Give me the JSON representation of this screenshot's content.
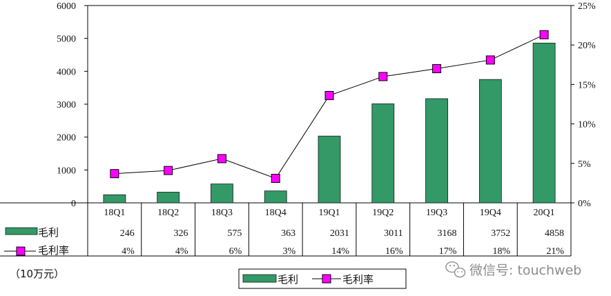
{
  "chart_data": {
    "type": "bar",
    "categories": [
      "18Q1",
      "18Q2",
      "18Q3",
      "18Q4",
      "19Q1",
      "19Q2",
      "19Q3",
      "19Q4",
      "20Q1"
    ],
    "series": [
      {
        "name": "毛利",
        "type": "bar",
        "axis": "left",
        "color": "#339966",
        "values": [
          246,
          326,
          575,
          363,
          2031,
          3011,
          3168,
          3752,
          4858
        ]
      },
      {
        "name": "毛利率",
        "type": "line",
        "axis": "right",
        "color": "#ff00ff",
        "values": [
          3.7,
          4.1,
          5.6,
          3.1,
          13.6,
          16.0,
          17.0,
          18.1,
          21.3
        ],
        "labels": [
          "4%",
          "4%",
          "6%",
          "3%",
          "14%",
          "16%",
          "17%",
          "18%",
          "21%"
        ]
      }
    ],
    "y_left": {
      "ylim": [
        0,
        6000
      ],
      "ticks": [
        "0",
        "1000",
        "2000",
        "3000",
        "4000",
        "5000",
        "6000"
      ]
    },
    "y_right": {
      "ylim": [
        0,
        25
      ],
      "ticks": [
        "0%",
        "5%",
        "10%",
        "15%",
        "20%",
        "25%"
      ]
    },
    "table_rows": [
      {
        "label": "毛利",
        "values": [
          "246",
          "326",
          "575",
          "363",
          "2031",
          "3011",
          "3168",
          "3752",
          "4858"
        ]
      },
      {
        "label": "毛利率",
        "values": [
          "4%",
          "4%",
          "6%",
          "3%",
          "14%",
          "16%",
          "17%",
          "18%",
          "21%"
        ]
      }
    ],
    "unit_note": "（10万元）",
    "legend": {
      "position": "bottom",
      "items": [
        "毛利",
        "毛利率"
      ]
    },
    "grid": false
  },
  "watermark": {
    "text": "微信号: touchweb",
    "icon": "wechat-icon"
  }
}
